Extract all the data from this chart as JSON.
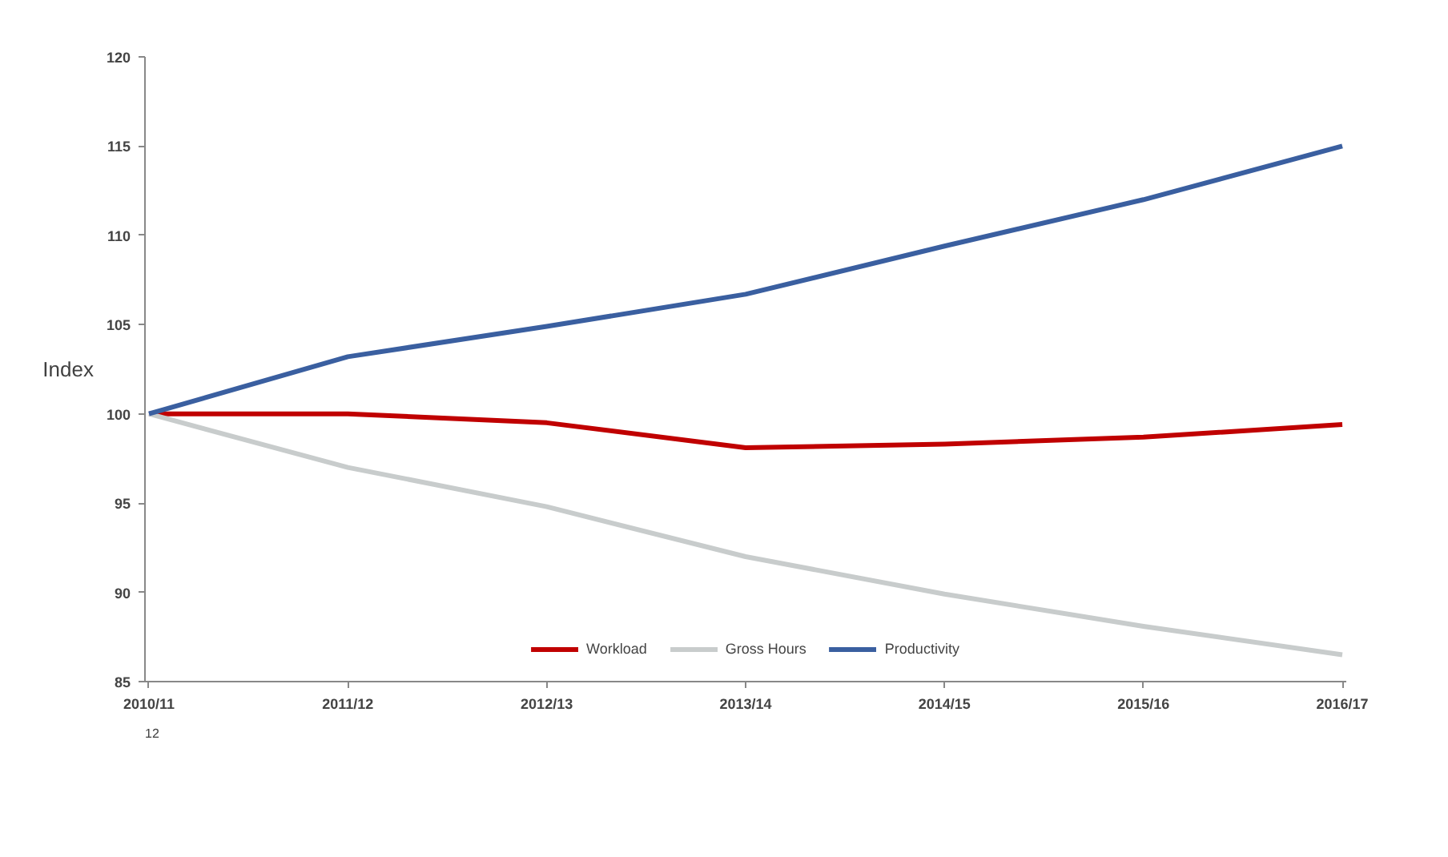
{
  "chart_data": {
    "type": "line",
    "ylabel": "Index",
    "categories": [
      "2010/11",
      "2011/12",
      "2012/13",
      "2013/14",
      "2014/15",
      "2015/16",
      "2016/17"
    ],
    "series": [
      {
        "name": "Workload",
        "color": "#c00000",
        "values": [
          100,
          100,
          99.5,
          98.1,
          98.3,
          98.7,
          99.4
        ]
      },
      {
        "name": "Gross Hours",
        "color": "#c8cccc",
        "values": [
          100,
          97.0,
          94.8,
          92.0,
          89.9,
          88.1,
          86.5
        ]
      },
      {
        "name": "Productivity",
        "color": "#3a5fa0",
        "values": [
          100,
          103.2,
          104.9,
          106.7,
          109.4,
          112.0,
          115.0
        ]
      }
    ],
    "ylim": [
      85,
      120
    ],
    "yticks": [
      85,
      90,
      95,
      100,
      105,
      110,
      115,
      120
    ],
    "grid": false,
    "legend": "bottom",
    "marker": "none",
    "line_style": "solid",
    "annotations": [
      "12"
    ]
  }
}
